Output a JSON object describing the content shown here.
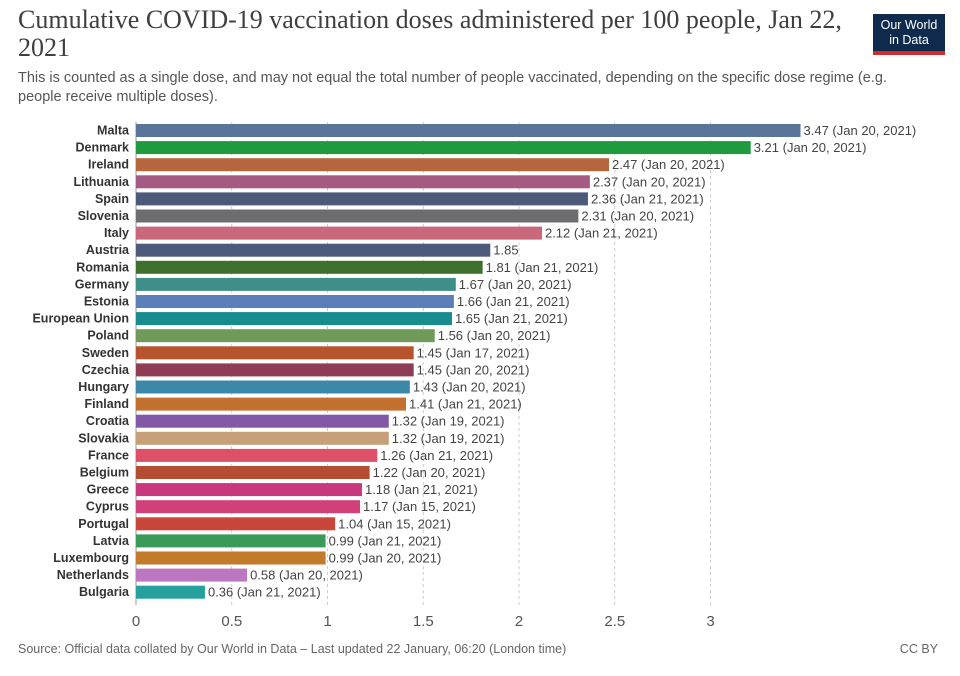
{
  "header": {
    "title": "Cumulative COVID-19 vaccination doses administered per 100 people, Jan 22, 2021",
    "subtitle": "This is counted as a single dose, and may not equal the total number of people vaccinated, depending on the specific dose regime (e.g. people receive multiple doses).",
    "logo_line1": "Our World",
    "logo_line2": "in Data"
  },
  "footer": {
    "source": "Source: Official data collated by Our World in Data – Last updated 22 January, 06:20 (London time)",
    "license": "CC BY"
  },
  "colors": {
    "logo_bg": "#0e2a4c",
    "logo_accent": "#d42b2b",
    "grid": "#cccccc"
  },
  "chart_data": {
    "type": "bar",
    "orientation": "horizontal",
    "title": "Cumulative COVID-19 vaccination doses administered per 100 people, Jan 22, 2021",
    "xlabel": "",
    "ylabel": "",
    "xlim": [
      0,
      3.47
    ],
    "xticks": [
      "0",
      "0.5",
      "1",
      "1.5",
      "2",
      "2.5",
      "3"
    ],
    "xtick_values": [
      0,
      0.5,
      1,
      1.5,
      2,
      2.5,
      3
    ],
    "grid": true,
    "categories": [
      "Malta",
      "Denmark",
      "Ireland",
      "Lithuania",
      "Spain",
      "Slovenia",
      "Italy",
      "Austria",
      "Romania",
      "Germany",
      "Estonia",
      "European Union",
      "Poland",
      "Sweden",
      "Czechia",
      "Hungary",
      "Finland",
      "Croatia",
      "Slovakia",
      "France",
      "Belgium",
      "Greece",
      "Cyprus",
      "Portugal",
      "Latvia",
      "Luxembourg",
      "Netherlands",
      "Bulgaria"
    ],
    "values": [
      3.47,
      3.21,
      2.47,
      2.37,
      2.36,
      2.31,
      2.12,
      1.85,
      1.81,
      1.67,
      1.66,
      1.65,
      1.56,
      1.45,
      1.45,
      1.43,
      1.41,
      1.32,
      1.32,
      1.26,
      1.22,
      1.18,
      1.17,
      1.04,
      0.99,
      0.99,
      0.58,
      0.36
    ],
    "labels": [
      "3.47 (Jan 20, 2021)",
      "3.21 (Jan 20, 2021)",
      "2.47 (Jan 20, 2021)",
      "2.37 (Jan 20, 2021)",
      "2.36 (Jan 21, 2021)",
      "2.31 (Jan 20, 2021)",
      "2.12 (Jan 21, 2021)",
      "1.85",
      "1.81 (Jan 21, 2021)",
      "1.67 (Jan 20, 2021)",
      "1.66 (Jan 21, 2021)",
      "1.65 (Jan 21, 2021)",
      "1.56 (Jan 20, 2021)",
      "1.45 (Jan 17, 2021)",
      "1.45 (Jan 20, 2021)",
      "1.43 (Jan 20, 2021)",
      "1.41 (Jan 21, 2021)",
      "1.32 (Jan 19, 2021)",
      "1.32 (Jan 19, 2021)",
      "1.26 (Jan 21, 2021)",
      "1.22 (Jan 20, 2021)",
      "1.18 (Jan 21, 2021)",
      "1.17 (Jan 15, 2021)",
      "1.04 (Jan 15, 2021)",
      "0.99 (Jan 21, 2021)",
      "0.99 (Jan 20, 2021)",
      "0.58 (Jan 20, 2021)",
      "0.36 (Jan 21, 2021)"
    ],
    "bar_colors": [
      "#59769a",
      "#1f9a3e",
      "#b5663d",
      "#a45a83",
      "#4a5a78",
      "#6d6d70",
      "#c9687a",
      "#4d5a7c",
      "#3f6f2d",
      "#3d8f87",
      "#5b7fb8",
      "#188b8e",
      "#6f9a5a",
      "#b8542d",
      "#8e3d55",
      "#3c88a8",
      "#c4702f",
      "#8259a7",
      "#c7a079",
      "#de5068",
      "#b54d33",
      "#c8387f",
      "#d2407a",
      "#c9473a",
      "#3a9a58",
      "#c27b2b",
      "#bb78c0",
      "#26a09c"
    ]
  }
}
